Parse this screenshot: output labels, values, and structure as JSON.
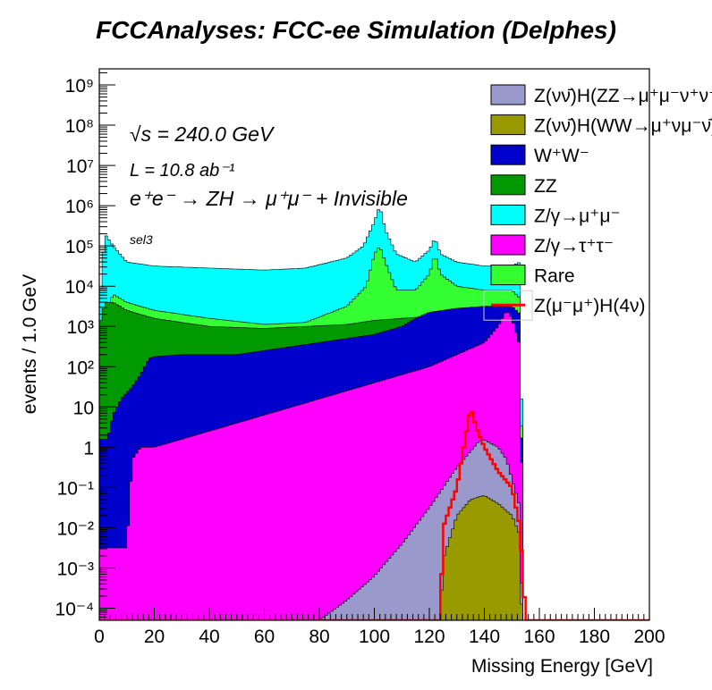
{
  "chart_data": {
    "type": "area",
    "title": "FCCAnalyses: FCC-ee Simulation (Delphes)",
    "xlabel": "Missing Energy [GeV]",
    "ylabel": "events / 1.0 GeV",
    "xlim": [
      0,
      200
    ],
    "ylim_log10": [
      -4.3,
      9.4
    ],
    "yscale": "log",
    "x_ticks": [
      0,
      20,
      40,
      60,
      80,
      100,
      120,
      140,
      160,
      180,
      200
    ],
    "y_ticks": [
      {
        "label": "10⁻⁴",
        "log": -4
      },
      {
        "label": "10⁻³",
        "log": -3
      },
      {
        "label": "10⁻²",
        "log": -2
      },
      {
        "label": "10⁻¹",
        "log": -1
      },
      {
        "label": "1",
        "log": 0
      },
      {
        "label": "10",
        "log": 1
      },
      {
        "label": "10²",
        "log": 2
      },
      {
        "label": "10³",
        "log": 3
      },
      {
        "label": "10⁴",
        "log": 4
      },
      {
        "label": "10⁵",
        "log": 5
      },
      {
        "label": "10⁶",
        "log": 6
      },
      {
        "label": "10⁷",
        "log": 7
      },
      {
        "label": "10⁸",
        "log": 8
      },
      {
        "label": "10⁹",
        "log": 9
      }
    ],
    "annotations": {
      "sqrt_s": "√s = 240.0 GeV",
      "lumi": "L = 10.8 ab⁻¹",
      "process": "e⁺e⁻ → ZH → μ⁺μ⁻ + Invisible",
      "selection": "sel3"
    },
    "stack_series": [
      {
        "name": "Z/γ→μ⁺μ⁻",
        "color": "#00ffff",
        "points": [
          [
            0,
            3.5
          ],
          [
            2,
            5.3
          ],
          [
            5,
            5.0
          ],
          [
            10,
            4.6
          ],
          [
            20,
            4.5
          ],
          [
            40,
            4.45
          ],
          [
            60,
            4.4
          ],
          [
            75,
            4.45
          ],
          [
            90,
            4.7
          ],
          [
            96,
            5.0
          ],
          [
            100,
            5.6
          ],
          [
            102,
            6.0
          ],
          [
            104,
            5.4
          ],
          [
            108,
            4.8
          ],
          [
            115,
            4.6
          ],
          [
            120,
            4.9
          ],
          [
            122,
            5.2
          ],
          [
            124,
            4.8
          ],
          [
            130,
            4.6
          ],
          [
            140,
            4.5
          ],
          [
            150,
            4.5
          ],
          [
            153,
            4.6
          ],
          [
            155,
            -9
          ]
        ]
      },
      {
        "name": "Rare",
        "color": "#33ff33",
        "points": [
          [
            0,
            3.0
          ],
          [
            5,
            3.8
          ],
          [
            10,
            3.6
          ],
          [
            20,
            3.4
          ],
          [
            40,
            3.2
          ],
          [
            60,
            3.05
          ],
          [
            75,
            3.1
          ],
          [
            90,
            3.5
          ],
          [
            97,
            4.0
          ],
          [
            100,
            4.8
          ],
          [
            102,
            5.0
          ],
          [
            104,
            4.6
          ],
          [
            108,
            3.9
          ],
          [
            115,
            3.9
          ],
          [
            120,
            4.3
          ],
          [
            122,
            4.8
          ],
          [
            124,
            4.3
          ],
          [
            130,
            4.0
          ],
          [
            140,
            3.9
          ],
          [
            150,
            3.9
          ],
          [
            153,
            3.7
          ],
          [
            155,
            -9
          ]
        ]
      },
      {
        "name": "ZZ",
        "color": "#009900",
        "points": [
          [
            0,
            3.0
          ],
          [
            2,
            3.6
          ],
          [
            5,
            3.6
          ],
          [
            10,
            3.4
          ],
          [
            20,
            3.2
          ],
          [
            40,
            3.0
          ],
          [
            60,
            2.95
          ],
          [
            75,
            3.0
          ],
          [
            90,
            3.05
          ],
          [
            100,
            3.15
          ],
          [
            110,
            3.2
          ],
          [
            120,
            3.25
          ],
          [
            130,
            3.35
          ],
          [
            140,
            3.45
          ],
          [
            150,
            3.5
          ],
          [
            153,
            3.3
          ],
          [
            155,
            -9
          ]
        ]
      },
      {
        "name": "W⁺W⁻",
        "color": "#0000cc",
        "points": [
          [
            0,
            0.2
          ],
          [
            3,
            0.2
          ],
          [
            5,
            0.8
          ],
          [
            8,
            1.2
          ],
          [
            12,
            1.5
          ],
          [
            15,
            1.8
          ],
          [
            18,
            2.2
          ],
          [
            20,
            2.25
          ],
          [
            30,
            2.3
          ],
          [
            40,
            2.3
          ],
          [
            50,
            2.3
          ],
          [
            60,
            2.4
          ],
          [
            70,
            2.5
          ],
          [
            80,
            2.6
          ],
          [
            90,
            2.7
          ],
          [
            100,
            2.8
          ],
          [
            110,
            3.0
          ],
          [
            115,
            3.2
          ],
          [
            120,
            3.35
          ],
          [
            130,
            3.45
          ],
          [
            140,
            3.5
          ],
          [
            150,
            3.5
          ],
          [
            153,
            3.3
          ],
          [
            155,
            -9
          ]
        ]
      },
      {
        "name": "Z/γ→τ⁺τ⁻",
        "color": "#ff00ff",
        "points": [
          [
            10,
            -2.5
          ],
          [
            12,
            -0.3
          ],
          [
            15,
            0.0
          ],
          [
            20,
            0.0
          ],
          [
            30,
            0.2
          ],
          [
            40,
            0.4
          ],
          [
            50,
            0.6
          ],
          [
            60,
            0.8
          ],
          [
            70,
            1.0
          ],
          [
            80,
            1.2
          ],
          [
            90,
            1.4
          ],
          [
            100,
            1.6
          ],
          [
            110,
            1.8
          ],
          [
            120,
            2.0
          ],
          [
            130,
            2.3
          ],
          [
            140,
            2.6
          ],
          [
            145,
            3.0
          ],
          [
            148,
            3.4
          ],
          [
            150,
            3.2
          ],
          [
            153,
            2.5
          ],
          [
            155,
            -9
          ]
        ]
      },
      {
        "name": "Z(νν̄)H(ZZ→μ⁺μ⁻ν⁺ν⁻)",
        "color": "#9999cc",
        "points": [
          [
            80,
            -4.3
          ],
          [
            90,
            -3.8
          ],
          [
            100,
            -3.2
          ],
          [
            110,
            -2.4
          ],
          [
            120,
            -1.5
          ],
          [
            125,
            -1.0
          ],
          [
            130,
            -0.5
          ],
          [
            135,
            -0.1
          ],
          [
            138,
            0.15
          ],
          [
            140,
            0.18
          ],
          [
            145,
            0.0
          ],
          [
            148,
            -0.3
          ],
          [
            150,
            -0.8
          ],
          [
            153,
            -1.5
          ],
          [
            155,
            -9
          ]
        ]
      },
      {
        "name": "Z(νν̄)H(WW→μ⁺νμ⁻ν̄)",
        "color": "#999900",
        "points": [
          [
            124,
            -4.3
          ],
          [
            125,
            -2.8
          ],
          [
            130,
            -1.7
          ],
          [
            135,
            -1.3
          ],
          [
            140,
            -1.2
          ],
          [
            145,
            -1.4
          ],
          [
            150,
            -1.7
          ],
          [
            153,
            -2.2
          ],
          [
            155,
            -9
          ]
        ]
      }
    ],
    "signal_series": {
      "name": "Z(μ⁻μ⁺)H(4ν)",
      "color": "#ff0000",
      "points": [
        [
          0,
          -4.3
        ],
        [
          124,
          -4.3
        ],
        [
          125,
          -2.0
        ],
        [
          130,
          -1.0
        ],
        [
          133,
          0.2
        ],
        [
          135,
          1.0
        ],
        [
          137,
          0.5
        ],
        [
          140,
          0.0
        ],
        [
          145,
          -0.6
        ],
        [
          150,
          -1.0
        ],
        [
          153,
          -2.0
        ],
        [
          155,
          -4.3
        ],
        [
          200,
          -4.3
        ]
      ]
    },
    "legend": [
      {
        "label": "Z(νν̄)H(ZZ→μ⁺μ⁻ν⁺ν⁻)",
        "color": "#9999cc",
        "kind": "box"
      },
      {
        "label": "Z(νν̄)H(WW→μ⁺νμ⁻ν̄)",
        "color": "#999900",
        "kind": "box"
      },
      {
        "label": "W⁺W⁻",
        "color": "#0000cc",
        "kind": "box"
      },
      {
        "label": "ZZ",
        "color": "#009900",
        "kind": "box"
      },
      {
        "label": "Z/γ→μ⁺μ⁻",
        "color": "#00ffff",
        "kind": "box"
      },
      {
        "label": "Z/γ→τ⁺τ⁻",
        "color": "#ff00ff",
        "kind": "box"
      },
      {
        "label": "Rare",
        "color": "#33ff33",
        "kind": "box"
      },
      {
        "label": "Z(μ⁻μ⁺)H(4ν)",
        "color": "#ff0000",
        "kind": "line"
      }
    ],
    "legend_position": "top-right"
  }
}
